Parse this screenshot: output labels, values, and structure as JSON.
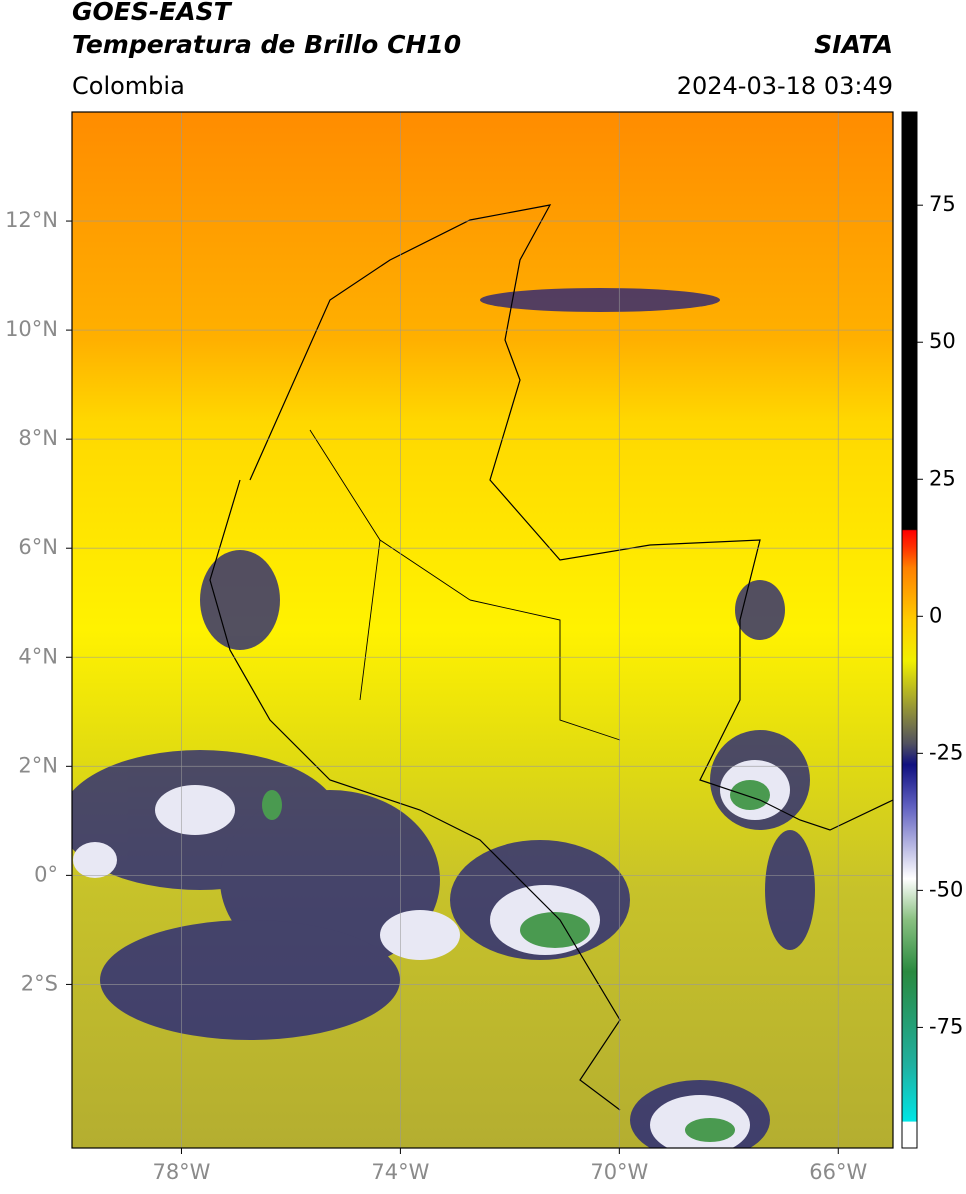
{
  "header": {
    "title_line1": "GOES-EAST",
    "title_line2": "Temperatura de Brillo CH10",
    "region": "Colombia",
    "source": "SIATA",
    "timestamp": "2024-03-18 03:49"
  },
  "map": {
    "xlim": [
      -80,
      -65
    ],
    "ylim": [
      -5,
      14
    ],
    "xticks": [
      {
        "value": -78,
        "label": "78°W"
      },
      {
        "value": -74,
        "label": "74°W"
      },
      {
        "value": -70,
        "label": "70°W"
      },
      {
        "value": -66,
        "label": "66°W"
      }
    ],
    "yticks": [
      {
        "value": 12,
        "label": "12°N"
      },
      {
        "value": 10,
        "label": "10°N"
      },
      {
        "value": 8,
        "label": "8°N"
      },
      {
        "value": 6,
        "label": "6°N"
      },
      {
        "value": 4,
        "label": "4°N"
      },
      {
        "value": 2,
        "label": "2°N"
      },
      {
        "value": 0,
        "label": "0°"
      },
      {
        "value": -2,
        "label": "2°S"
      }
    ]
  },
  "colorbar": {
    "lim": [
      -97,
      92
    ],
    "ticks": [
      75,
      50,
      25,
      0,
      -25,
      -50,
      -75
    ]
  }
}
